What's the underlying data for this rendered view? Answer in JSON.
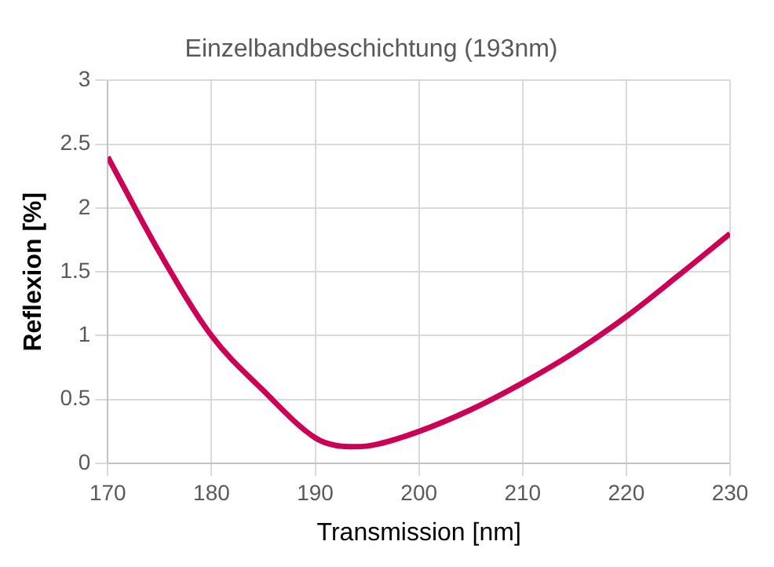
{
  "chart_data": {
    "type": "line",
    "title": "Einzelbandbeschichtung (193nm)",
    "xlabel": "Transmission [nm]",
    "ylabel": "Reflexion [%]",
    "x": [
      170,
      175,
      180,
      185,
      190,
      192,
      194,
      196,
      200,
      205,
      210,
      215,
      220,
      225,
      230
    ],
    "series": [
      {
        "color": "#cc0055",
        "values": [
          2.4,
          1.65,
          1.0,
          0.57,
          0.2,
          0.14,
          0.13,
          0.15,
          0.25,
          0.42,
          0.63,
          0.87,
          1.15,
          1.47,
          1.8
        ]
      }
    ],
    "xlim": [
      170,
      230
    ],
    "xticks": [
      170,
      180,
      190,
      200,
      210,
      220,
      230
    ],
    "ylim": [
      0,
      3
    ],
    "yticks": [
      0,
      0.5,
      1,
      1.5,
      2,
      2.5,
      3
    ],
    "grid": true,
    "legend": false,
    "marker": "none",
    "line_style": "solid"
  }
}
